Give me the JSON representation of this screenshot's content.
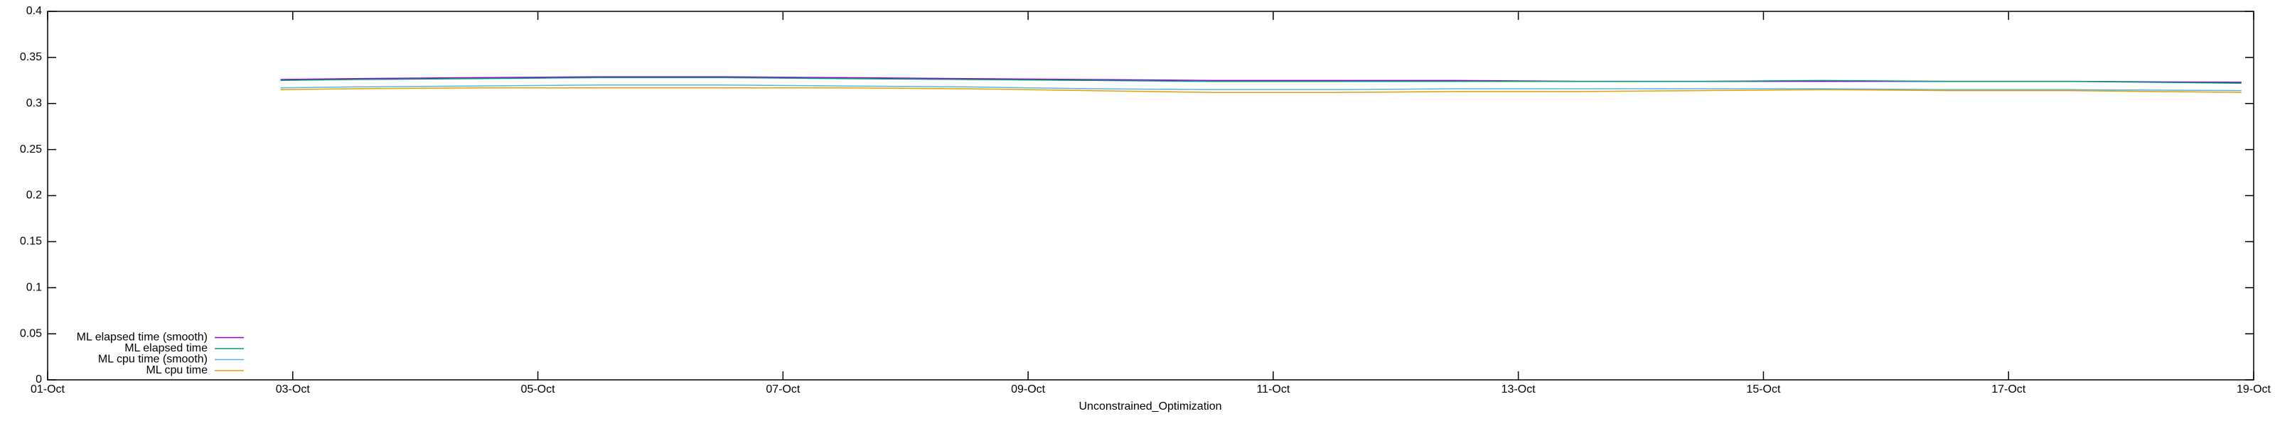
{
  "chart_data": {
    "type": "line",
    "xlabel": "Unconstrained_Optimization",
    "x": [
      1.9,
      2.5,
      3.5,
      4.5,
      5.5,
      6.5,
      7.5,
      8.5,
      9.5,
      10.5,
      11.5,
      12.5,
      13.5,
      14.5,
      15.5,
      16.5,
      17.9
    ],
    "series": [
      {
        "name": "ML elapsed time (smooth)",
        "color": "#9400d3",
        "values": [
          0.326,
          0.327,
          0.328,
          0.329,
          0.329,
          0.328,
          0.327,
          0.326,
          0.325,
          0.325,
          0.325,
          0.324,
          0.324,
          0.324,
          0.324,
          0.324,
          0.323
        ]
      },
      {
        "name": "ML elapsed time",
        "color": "#009e73",
        "values": [
          0.325,
          0.326,
          0.327,
          0.328,
          0.328,
          0.327,
          0.326,
          0.325,
          0.324,
          0.324,
          0.324,
          0.324,
          0.324,
          0.325,
          0.324,
          0.324,
          0.322
        ]
      },
      {
        "name": "ML cpu time (smooth)",
        "color": "#56b4e9",
        "values": [
          0.317,
          0.318,
          0.319,
          0.32,
          0.32,
          0.319,
          0.318,
          0.316,
          0.315,
          0.315,
          0.316,
          0.316,
          0.316,
          0.316,
          0.315,
          0.315,
          0.314
        ]
      },
      {
        "name": "ML cpu time",
        "color": "#e69f00",
        "values": [
          0.315,
          0.316,
          0.317,
          0.317,
          0.317,
          0.317,
          0.316,
          0.314,
          0.312,
          0.312,
          0.313,
          0.313,
          0.314,
          0.315,
          0.314,
          0.314,
          0.312
        ]
      }
    ],
    "xlim": [
      0,
      18
    ],
    "xticks": [
      {
        "value": 0,
        "label": "01-Oct"
      },
      {
        "value": 2,
        "label": "03-Oct"
      },
      {
        "value": 4,
        "label": "05-Oct"
      },
      {
        "value": 6,
        "label": "07-Oct"
      },
      {
        "value": 8,
        "label": "09-Oct"
      },
      {
        "value": 10,
        "label": "11-Oct"
      },
      {
        "value": 12,
        "label": "13-Oct"
      },
      {
        "value": 14,
        "label": "15-Oct"
      },
      {
        "value": 16,
        "label": "17-Oct"
      },
      {
        "value": 18,
        "label": "19-Oct"
      }
    ],
    "ylim": [
      0,
      0.4
    ],
    "yticks": [
      0,
      0.05,
      0.1,
      0.15,
      0.2,
      0.25,
      0.3,
      0.35,
      0.4
    ],
    "legend": "bottom left"
  }
}
